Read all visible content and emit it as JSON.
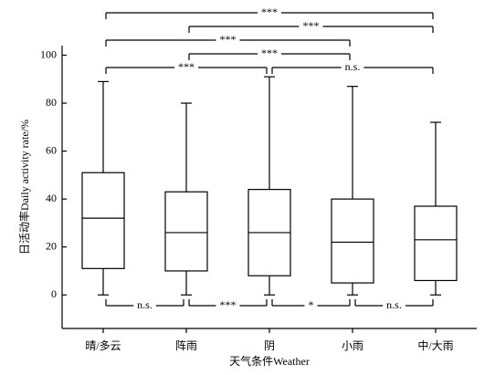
{
  "chart_data": {
    "type": "box",
    "x_label": "天气条件Weather",
    "y_label": "日活动率Daily activity rate/%",
    "categories": [
      "晴/多云",
      "阵雨",
      "阴",
      "小雨",
      "中/大雨"
    ],
    "min": [
      0,
      0,
      0,
      0,
      0
    ],
    "q1": [
      11,
      10,
      8,
      5,
      6
    ],
    "median": [
      32,
      26,
      26,
      22,
      23
    ],
    "q3": [
      51,
      43,
      44,
      40,
      37
    ],
    "max": [
      89,
      80,
      91,
      87,
      72
    ],
    "ylim": [
      -14,
      104
    ],
    "yticks": [
      0,
      20,
      40,
      60,
      80,
      100
    ],
    "top_comparisons": [
      [
        {
          "pair": [
            "晴/多云",
            "中/大雨"
          ],
          "label": "***"
        }
      ],
      [
        {
          "pair": [
            "阵雨",
            "中/大雨"
          ],
          "label": "***"
        }
      ],
      [
        {
          "pair": [
            "晴/多云",
            "小雨"
          ],
          "label": "***"
        }
      ],
      [
        {
          "pair": [
            "阵雨",
            "小雨"
          ],
          "label": "***"
        }
      ],
      [
        {
          "pair": [
            "晴/多云",
            "阴"
          ],
          "label": "***"
        },
        {
          "pair": [
            "阴",
            "中/大雨"
          ],
          "label": "n.s."
        }
      ]
    ],
    "bottom_comparisons": [
      {
        "pair": [
          "晴/多云",
          "阵雨"
        ],
        "label": "n.s."
      },
      {
        "pair": [
          "阵雨",
          "阴"
        ],
        "label": "***"
      },
      {
        "pair": [
          "阴",
          "小雨"
        ],
        "label": "*"
      },
      {
        "pair": [
          "小雨",
          "中/大雨"
        ],
        "label": "n.s."
      }
    ]
  }
}
